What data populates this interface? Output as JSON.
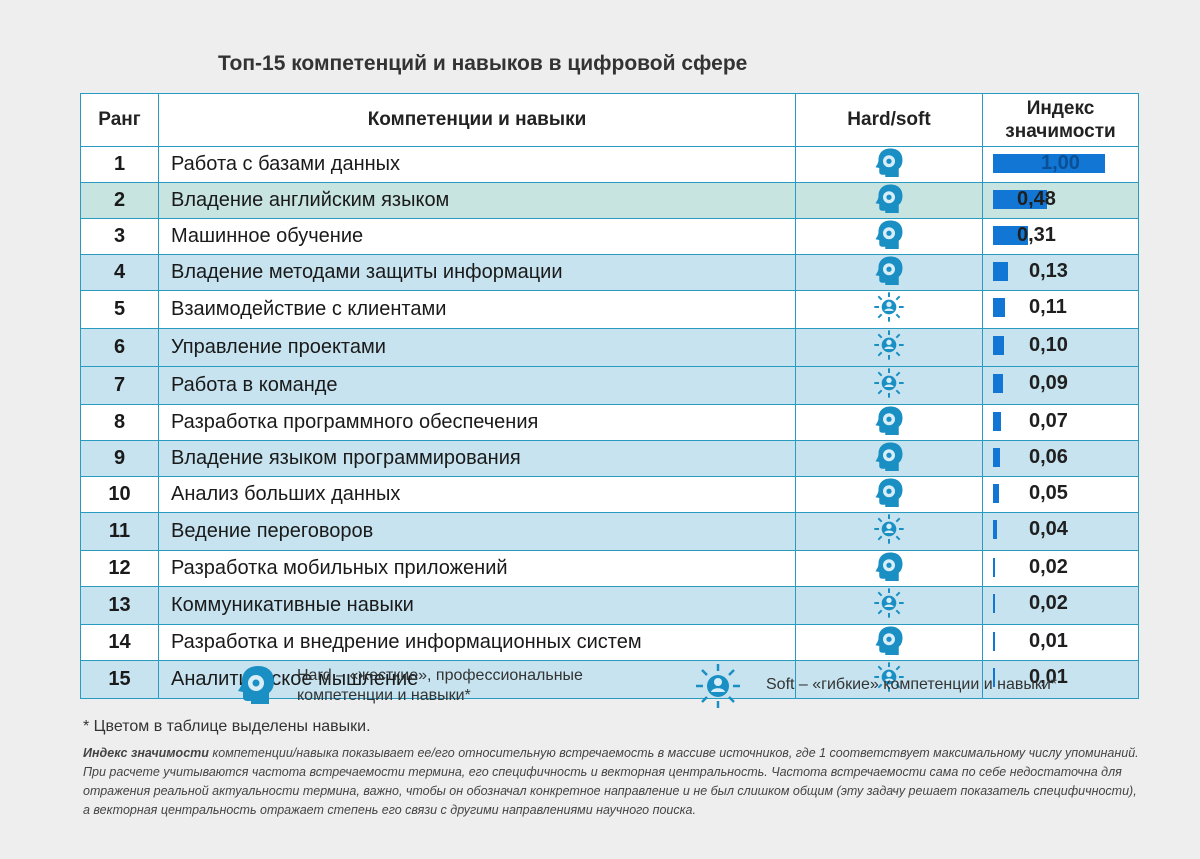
{
  "title": "Топ-15 компетенций и навыков в цифровой сфере",
  "headers": {
    "rank": "Ранг",
    "name": "Компетенции и навыки",
    "type": "Hard/soft",
    "index_line1": "Индекс",
    "index_line2": "значимости"
  },
  "colors": {
    "border": "#2a9bc0",
    "row_blue": "#c6e3ef",
    "row_green": "#c7e4e0",
    "bar": "#1277d4",
    "icon": "#1a8fc4"
  },
  "rows": [
    {
      "rank": "1",
      "name": "Работа с базами данных",
      "type": "hard",
      "value": "1,00",
      "index": 1.0
    },
    {
      "rank": "2",
      "name": "Владение английским языком",
      "type": "hard",
      "value": "0,48",
      "index": 0.48
    },
    {
      "rank": "3",
      "name": "Машинное обучение",
      "type": "hard",
      "value": "0,31",
      "index": 0.31
    },
    {
      "rank": "4",
      "name": "Владение методами защиты информации",
      "type": "hard",
      "value": "0,13",
      "index": 0.13
    },
    {
      "rank": "5",
      "name": "Взаимодействие с клиентами",
      "type": "soft",
      "value": "0,11",
      "index": 0.11
    },
    {
      "rank": "6",
      "name": "Управление проектами",
      "type": "soft",
      "value": "0,10",
      "index": 0.1
    },
    {
      "rank": "7",
      "name": "Работа в команде",
      "type": "soft",
      "value": "0,09",
      "index": 0.09
    },
    {
      "rank": "8",
      "name": "Разработка программного обеспечения",
      "type": "hard",
      "value": "0,07",
      "index": 0.07
    },
    {
      "rank": "9",
      "name": "Владение языком программирования",
      "type": "hard",
      "value": "0,06",
      "index": 0.06
    },
    {
      "rank": "10",
      "name": "Анализ больших данных",
      "type": "hard",
      "value": "0,05",
      "index": 0.05
    },
    {
      "rank": "11",
      "name": "Ведение переговоров",
      "type": "soft",
      "value": "0,04",
      "index": 0.04
    },
    {
      "rank": "12",
      "name": "Разработка мобильных приложений",
      "type": "hard",
      "value": "0,02",
      "index": 0.02
    },
    {
      "rank": "13",
      "name": "Коммуникативные навыки",
      "type": "soft",
      "value": "0,02",
      "index": 0.02
    },
    {
      "rank": "14",
      "name": "Разработка и внедрение информационных систем",
      "type": "hard",
      "value": "0,01",
      "index": 0.01
    },
    {
      "rank": "15",
      "name": "Аналитическое мышление",
      "type": "soft",
      "value": "0,01",
      "index": 0.01
    }
  ],
  "legend": {
    "hard_line1": "Hard – «жесткие», профессиональные",
    "hard_line2": "компетенции и навыки*",
    "soft": "Soft – «гибкие» компетенции и навыки*"
  },
  "footnote": "* Цветом в таблице выделены навыки.",
  "note": {
    "term": "Индекс значимости",
    "text": " компетенции/навыка показывает ее/его относительную встречаемость в массиве источников, где 1 соответствует максимальному числу упоминаний. При расчете учитываются частота встречаемости термина, его специфичность и векторная центральность. Частота встречаемости сама по себе недостаточна для отражения реальной актуальности термина, важно, чтобы он обозначал конкретное направление и не был слишком общим (эту задачу решает показатель специфичности), а векторная центральность отражает степень его связи с другими направлениями научного поиска."
  }
}
